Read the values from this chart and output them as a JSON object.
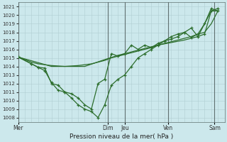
{
  "title": "Pression niveau de la mer( hPa )",
  "background_color": "#cce8ec",
  "grid_color_major": "#b8d8dc",
  "grid_color_minor": "#c8e4e8",
  "line_color": "#2d6e2d",
  "ylim": [
    1007.5,
    1021.5
  ],
  "yticks": [
    1008,
    1009,
    1010,
    1011,
    1012,
    1013,
    1014,
    1015,
    1016,
    1017,
    1018,
    1019,
    1020,
    1021
  ],
  "day_labels": [
    "Mer",
    "Dim",
    "Jeu",
    "Ven",
    "Sam"
  ],
  "day_x": [
    0,
    13.5,
    16,
    22.5,
    29.5
  ],
  "vline_x": [
    0,
    13.5,
    16,
    22.5,
    29.5
  ],
  "xlim": [
    0,
    31
  ],
  "n_x_cells": 31,
  "upper1_x": [
    0,
    1,
    2,
    3,
    4,
    5,
    6,
    7,
    8,
    9,
    10,
    11,
    12,
    13,
    14,
    15,
    16,
    17,
    18,
    19,
    20,
    21,
    22,
    23,
    24,
    25,
    26,
    27,
    28,
    29,
    30
  ],
  "upper1_y": [
    1015.1,
    1014.8,
    1014.5,
    1014.3,
    1014.2,
    1014.1,
    1014.05,
    1014.0,
    1014.05,
    1014.1,
    1014.2,
    1014.3,
    1014.5,
    1014.7,
    1015.0,
    1015.2,
    1015.4,
    1015.6,
    1015.8,
    1016.0,
    1016.2,
    1016.5,
    1016.7,
    1016.9,
    1017.1,
    1017.3,
    1017.5,
    1017.8,
    1018.0,
    1019.0,
    1020.5
  ],
  "upper2_x": [
    0,
    5,
    10,
    13,
    15,
    17,
    19,
    21,
    23,
    25,
    27,
    29,
    30
  ],
  "upper2_y": [
    1015.1,
    1014.0,
    1014.0,
    1014.8,
    1015.3,
    1015.7,
    1016.1,
    1016.5,
    1016.8,
    1017.1,
    1017.5,
    1020.5,
    1020.5
  ],
  "mid_x": [
    0,
    2,
    3,
    4,
    5,
    6,
    7,
    8,
    9,
    10,
    11,
    12,
    13,
    14,
    15,
    16,
    17,
    18,
    19,
    20,
    21,
    22,
    23,
    24,
    25,
    26,
    27,
    28,
    29,
    30
  ],
  "mid_y": [
    1015.1,
    1014.3,
    1013.9,
    1013.8,
    1012.0,
    1011.8,
    1011.0,
    1010.8,
    1010.3,
    1009.5,
    1009.0,
    1012.0,
    1012.5,
    1015.5,
    1015.2,
    1015.5,
    1016.5,
    1016.0,
    1016.5,
    1016.2,
    1016.7,
    1017.0,
    1017.2,
    1017.5,
    1018.0,
    1017.4,
    1017.8,
    1019.0,
    1020.8,
    1020.5
  ],
  "low_x": [
    0,
    2,
    3,
    4,
    5,
    6,
    7,
    8,
    9,
    10,
    11,
    12,
    13,
    14,
    15,
    16,
    17,
    18,
    19,
    20,
    21,
    22,
    23,
    24,
    25,
    26,
    27,
    28,
    29,
    30
  ],
  "low_y": [
    1015.1,
    1014.3,
    1013.9,
    1013.5,
    1012.1,
    1011.2,
    1011.0,
    1010.3,
    1009.5,
    1009.0,
    1008.7,
    1008.0,
    1009.5,
    1011.8,
    1012.5,
    1013.0,
    1014.0,
    1015.0,
    1015.5,
    1016.0,
    1016.5,
    1017.0,
    1017.5,
    1017.8,
    1018.0,
    1018.5,
    1017.5,
    1017.8,
    1020.5,
    1020.8
  ]
}
